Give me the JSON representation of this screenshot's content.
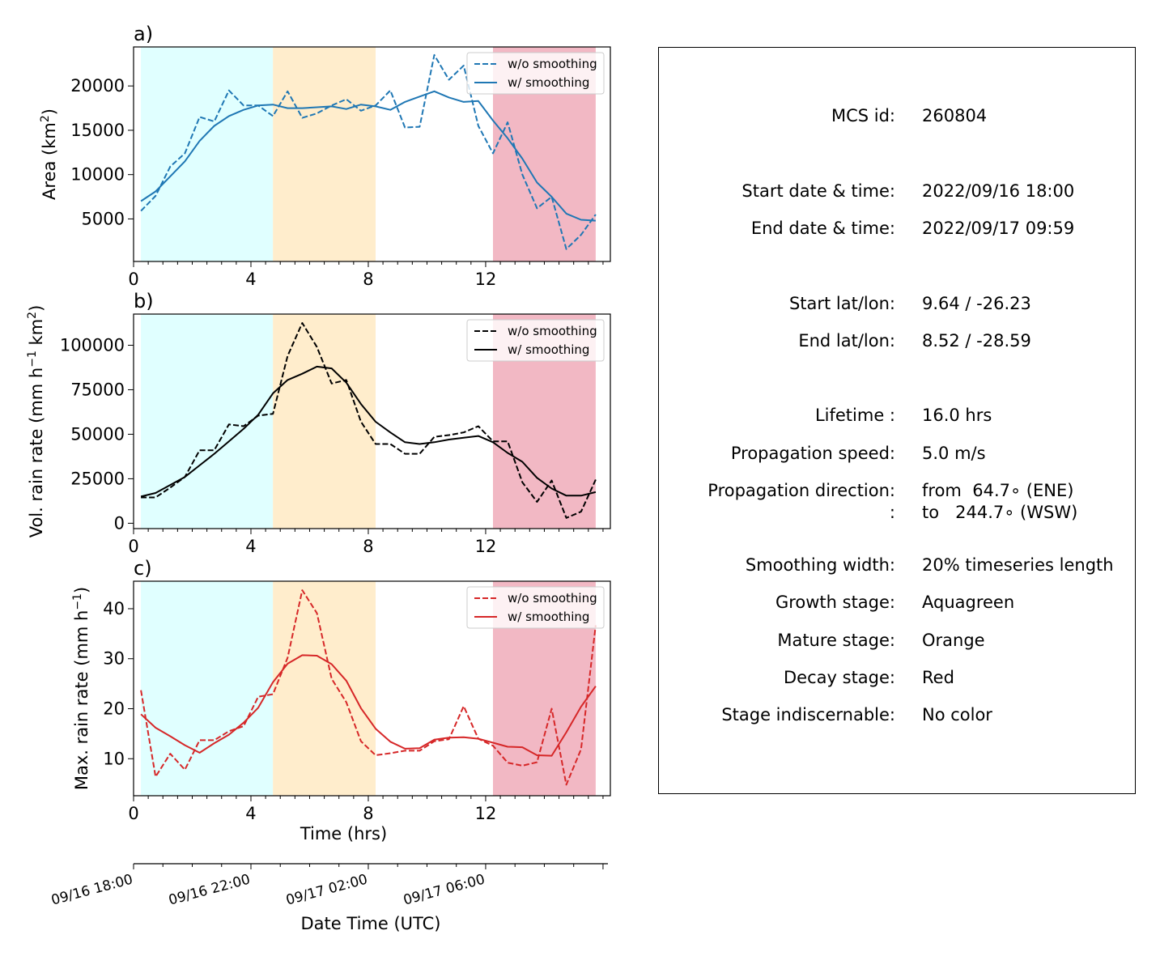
{
  "chart_data": [
    {
      "type": "line",
      "panel_label": "a)",
      "ylabel": "Area  (km²)",
      "ylabel_parts": {
        "main": "Area  (km",
        "sup": "2",
        "end": ")"
      },
      "xlim": [
        0,
        16.25
      ],
      "ylim": [
        200,
        24400
      ],
      "xticks": [
        0,
        4,
        8,
        12
      ],
      "yticks": [
        5000,
        10000,
        15000,
        20000
      ],
      "color": "#1f77b4",
      "stages": [
        {
          "name": "Growth stage",
          "x0": 0.25,
          "x1": 4.75,
          "color": "#e0ffff"
        },
        {
          "name": "Mature stage",
          "x0": 4.75,
          "x1": 8.25,
          "color": "#ffedcc"
        },
        {
          "name": "Decay stage",
          "x0": 12.25,
          "x1": 15.75,
          "color": "#f2b8c4"
        }
      ],
      "legend": {
        "position": "upper right",
        "entries": [
          "w/o smoothing",
          "w/ smoothing"
        ]
      },
      "series": [
        {
          "name": "w/o smoothing",
          "style": "dashed",
          "x": [
            0.25,
            0.75,
            1.25,
            1.75,
            2.25,
            2.75,
            3.25,
            3.75,
            4.25,
            4.75,
            5.25,
            5.75,
            6.25,
            6.75,
            7.25,
            7.75,
            8.25,
            8.75,
            9.25,
            9.75,
            10.25,
            10.75,
            11.25,
            11.75,
            12.25,
            12.75,
            13.25,
            13.75,
            14.25,
            14.75,
            15.25,
            15.75
          ],
          "y": [
            5900,
            7600,
            10900,
            12400,
            16500,
            16000,
            19500,
            17800,
            17800,
            16600,
            19400,
            16400,
            16900,
            17800,
            18500,
            17200,
            17800,
            19500,
            15300,
            15400,
            23500,
            20700,
            22300,
            15500,
            12400,
            15900,
            10000,
            6200,
            7500,
            1600,
            3200,
            5500
          ]
        },
        {
          "name": "w/ smoothing",
          "style": "solid",
          "x": [
            0.25,
            0.75,
            1.25,
            1.75,
            2.25,
            2.75,
            3.25,
            3.75,
            4.25,
            4.75,
            5.25,
            5.75,
            6.25,
            6.75,
            7.25,
            7.75,
            8.25,
            8.75,
            9.25,
            9.75,
            10.25,
            10.75,
            11.25,
            11.75,
            12.25,
            12.75,
            13.25,
            13.75,
            14.25,
            14.75,
            15.25,
            15.75
          ],
          "y": [
            7000,
            8100,
            9800,
            11500,
            13800,
            15500,
            16600,
            17300,
            17800,
            17900,
            17500,
            17500,
            17600,
            17700,
            17400,
            17900,
            17700,
            17300,
            18200,
            18800,
            19400,
            18700,
            18200,
            18300,
            16100,
            14100,
            11800,
            9100,
            7500,
            5600,
            4900,
            4800
          ]
        }
      ]
    },
    {
      "type": "line",
      "panel_label": "b)",
      "ylabel": "Vol. rain rate (mm h⁻¹ km²)",
      "ylabel_parts": {
        "main": "Vol. rain rate (mm h",
        "sup": "−1",
        "mid": " km",
        "sup2": "2",
        "end": ")"
      },
      "xlim": [
        0,
        16.25
      ],
      "ylim": [
        -3000,
        117500
      ],
      "xticks": [
        0,
        4,
        8,
        12
      ],
      "yticks": [
        0,
        25000,
        50000,
        75000,
        100000
      ],
      "color": "#000000",
      "stages": [
        {
          "name": "Growth stage",
          "x0": 0.25,
          "x1": 4.75,
          "color": "#e0ffff"
        },
        {
          "name": "Mature stage",
          "x0": 4.75,
          "x1": 8.25,
          "color": "#ffedcc"
        },
        {
          "name": "Decay stage",
          "x0": 12.25,
          "x1": 15.75,
          "color": "#f2b8c4"
        }
      ],
      "legend": {
        "position": "upper right",
        "entries": [
          "w/o smoothing",
          "w/ smoothing"
        ]
      },
      "series": [
        {
          "name": "w/o smoothing",
          "style": "dashed",
          "x": [
            0.25,
            0.75,
            1.25,
            1.75,
            2.25,
            2.75,
            3.25,
            3.75,
            4.25,
            4.75,
            5.25,
            5.75,
            6.25,
            6.75,
            7.25,
            7.75,
            8.25,
            8.75,
            9.25,
            9.75,
            10.25,
            10.75,
            11.25,
            11.75,
            12.25,
            12.75,
            13.25,
            13.75,
            14.25,
            14.75,
            15.25,
            15.75
          ],
          "y": [
            14500,
            14500,
            20000,
            26000,
            41000,
            41000,
            55500,
            54500,
            60500,
            61500,
            94000,
            112500,
            99000,
            78500,
            80500,
            57000,
            44500,
            44500,
            39000,
            39000,
            48500,
            49500,
            51000,
            54500,
            46000,
            46000,
            23000,
            12000,
            24000,
            3000,
            6500,
            24500
          ]
        },
        {
          "name": "w/ smoothing",
          "style": "solid",
          "x": [
            0.25,
            0.75,
            1.25,
            1.75,
            2.25,
            2.75,
            3.25,
            3.75,
            4.25,
            4.75,
            5.25,
            5.75,
            6.25,
            6.75,
            7.25,
            7.75,
            8.25,
            8.75,
            9.25,
            9.75,
            10.25,
            10.75,
            11.25,
            11.75,
            12.25,
            12.75,
            13.25,
            13.75,
            14.25,
            14.75,
            15.25,
            15.75
          ],
          "y": [
            15000,
            17000,
            21500,
            26000,
            32500,
            39000,
            46000,
            53000,
            61000,
            73000,
            80500,
            84000,
            88000,
            87000,
            79000,
            67000,
            57000,
            51000,
            45500,
            44500,
            45500,
            47000,
            48000,
            49000,
            45500,
            39500,
            34500,
            25500,
            19500,
            15500,
            15500,
            17500
          ]
        }
      ]
    },
    {
      "type": "line",
      "panel_label": "c)",
      "ylabel": "Max. rain rate  (mm h⁻¹)",
      "ylabel_parts": {
        "main": "Max. rain rate  (mm h",
        "sup": "−1",
        "end": ")"
      },
      "xlabel": "Time (hrs)",
      "xlim": [
        0,
        16.25
      ],
      "ylim": [
        2.6,
        45.5
      ],
      "xticks": [
        0,
        4,
        8,
        12
      ],
      "yticks": [
        10,
        20,
        30,
        40
      ],
      "color": "#d62728",
      "stages": [
        {
          "name": "Growth stage",
          "x0": 0.25,
          "x1": 4.75,
          "color": "#e0ffff"
        },
        {
          "name": "Mature stage",
          "x0": 4.75,
          "x1": 8.25,
          "color": "#ffedcc"
        },
        {
          "name": "Decay stage",
          "x0": 12.25,
          "x1": 15.75,
          "color": "#f2b8c4"
        }
      ],
      "legend": {
        "position": "upper right",
        "entries": [
          "w/o smoothing",
          "w/ smoothing"
        ]
      },
      "series": [
        {
          "name": "w/o smoothing",
          "style": "dashed",
          "x": [
            0.25,
            0.75,
            1.25,
            1.75,
            2.25,
            2.75,
            3.25,
            3.75,
            4.25,
            4.75,
            5.25,
            5.75,
            6.25,
            6.75,
            7.25,
            7.75,
            8.25,
            8.75,
            9.25,
            9.75,
            10.25,
            10.75,
            11.25,
            11.75,
            12.25,
            12.75,
            13.25,
            13.75,
            14.25,
            14.75,
            15.25,
            15.75
          ],
          "y": [
            23.7,
            6.4,
            11.0,
            7.8,
            13.7,
            13.7,
            15.5,
            16.5,
            22.4,
            22.9,
            30.2,
            43.7,
            39.1,
            26.0,
            21.3,
            13.5,
            10.7,
            11.1,
            11.6,
            11.6,
            13.5,
            13.9,
            20.5,
            14.0,
            12.6,
            9.2,
            8.6,
            9.3,
            20.0,
            4.8,
            11.9,
            36.7
          ]
        },
        {
          "name": "w/ smoothing",
          "style": "solid",
          "x": [
            0.25,
            0.75,
            1.25,
            1.75,
            2.25,
            2.75,
            3.25,
            3.75,
            4.25,
            4.75,
            5.25,
            5.75,
            6.25,
            6.75,
            7.25,
            7.75,
            8.25,
            8.75,
            9.25,
            9.75,
            10.25,
            10.75,
            11.25,
            11.75,
            12.25,
            12.75,
            13.25,
            13.75,
            14.25,
            14.75,
            15.25,
            15.75
          ],
          "y": [
            18.9,
            16.2,
            14.5,
            12.7,
            11.2,
            13.1,
            14.8,
            17.2,
            20.2,
            25.3,
            29.0,
            30.7,
            30.6,
            28.9,
            25.6,
            20.1,
            16.0,
            13.4,
            12.0,
            12.1,
            13.8,
            14.2,
            14.3,
            14.0,
            13.2,
            12.4,
            12.3,
            10.7,
            10.6,
            15.3,
            20.4,
            24.5
          ]
        }
      ]
    },
    {
      "type": "axis",
      "xlabel": "Date Time (UTC)",
      "xlim": [
        0,
        16.25
      ],
      "tick_labels": [
        {
          "x": 0,
          "label": "09/16 18:00"
        },
        {
          "x": 4,
          "label": "09/16 22:00"
        },
        {
          "x": 8,
          "label": "09/17 02:00"
        },
        {
          "x": 12,
          "label": "09/17 06:00"
        }
      ]
    }
  ],
  "info": [
    {
      "label": "MCS id:",
      "value": "260804"
    },
    {
      "label": "Start date & time:",
      "value": "2022/09/16 18:00"
    },
    {
      "label": "End date & time:",
      "value": "2022/09/17 09:59"
    },
    {
      "label": "Start lat/lon:",
      "value": "9.64 / -26.23"
    },
    {
      "label": "End lat/lon:",
      "value": "8.52 / -28.59"
    },
    {
      "label": "Lifetime :",
      "value": "16.0 hrs"
    },
    {
      "label": "Propagation speed:",
      "value": "5.0 m/s"
    },
    {
      "label": "Propagation direction:",
      "value": "from  64.7∘ (ENE)"
    },
    {
      "label": ":",
      "value": "to   244.7∘ (WSW)"
    },
    {
      "label": "Smoothing width:",
      "value": "20% timeseries length"
    },
    {
      "label": "Growth stage:",
      "value": "Aquagreen"
    },
    {
      "label": "Mature stage:",
      "value": "Orange"
    },
    {
      "label": "Decay stage:",
      "value": "Red"
    },
    {
      "label": "Stage indiscernable:",
      "value": "No color"
    }
  ]
}
